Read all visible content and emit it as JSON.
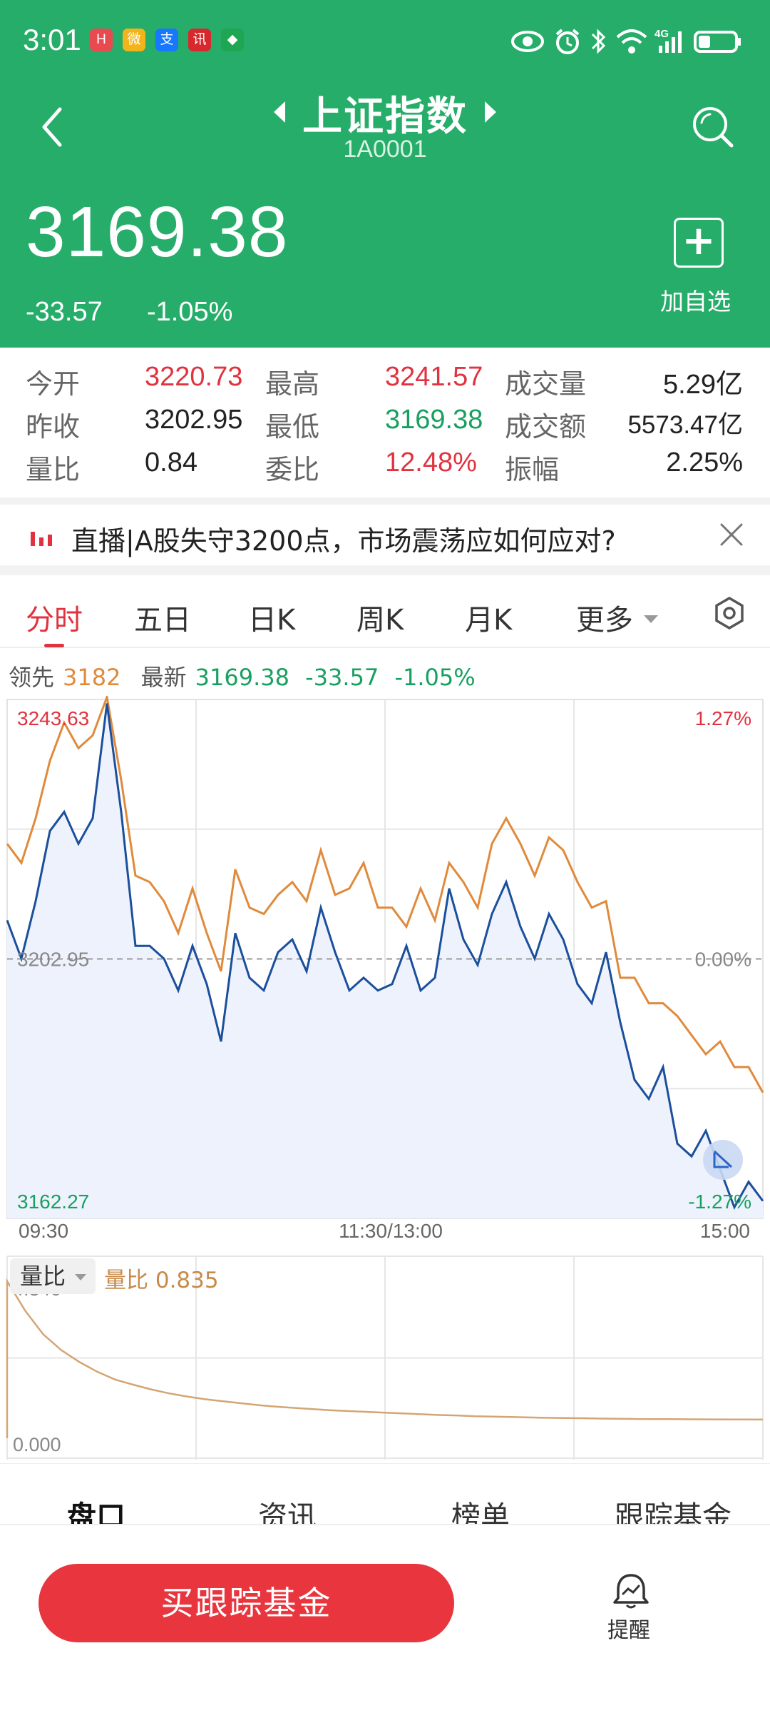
{
  "status_bar": {
    "time": "3:01",
    "notifications": [
      {
        "name": "huawei-app-icon",
        "color": "#e84a4f",
        "glyph": "H"
      },
      {
        "name": "weibo-app-icon",
        "color": "#f2b31b",
        "glyph": "微"
      },
      {
        "name": "alipay-app-icon",
        "color": "#1677ff",
        "glyph": "支"
      },
      {
        "name": "news-app-icon",
        "color": "#d7282d",
        "glyph": "讯"
      },
      {
        "name": "messaging-app-icon",
        "color": "#1fa652",
        "glyph": "◆"
      }
    ],
    "network": "4G"
  },
  "header": {
    "title": "上证指数",
    "code": "1A0001",
    "price": "3169.38",
    "change": "-33.57",
    "change_pct": "-1.05%",
    "add_label": "加自选",
    "bg_color": "#26ad6a"
  },
  "quote": {
    "open_label": "今开",
    "open": "3220.73",
    "high_label": "最高",
    "high": "3241.57",
    "volume_label": "成交量",
    "volume": "5.29亿",
    "prev_close_label": "昨收",
    "prev_close": "3202.95",
    "low_label": "最低",
    "low": "3169.38",
    "amount_label": "成交额",
    "amount": "5573.47亿",
    "vol_ratio_label": "量比",
    "vol_ratio": "0.84",
    "order_ratio_label": "委比",
    "order_ratio": "12.48%",
    "amplitude_label": "振幅",
    "amplitude": "2.25%"
  },
  "news": {
    "text": "直播|A股失守3200点，市场震荡应如何应对?"
  },
  "tabs": {
    "items": [
      "分时",
      "五日",
      "日K",
      "周K",
      "月K",
      "更多"
    ],
    "active": "分时"
  },
  "legend": {
    "lead_label": "领先",
    "lead_value": "3182",
    "latest_label": "最新",
    "latest_value": "3169.38",
    "latest_change": "-33.57",
    "latest_pct": "-1.05%"
  },
  "chart_data": [
    {
      "type": "line",
      "ylim": [
        3162.27,
        3243.63
      ],
      "base_value": 3202.95,
      "y_labels": {
        "top": "3243.63",
        "mid": "3202.95",
        "bottom": "3162.27"
      },
      "pct_labels": {
        "top": "1.27%",
        "mid": "0.00%",
        "bottom": "-1.27%"
      },
      "x_tick_labels": [
        "09:30",
        "11:30/13:00",
        "15:00"
      ],
      "series": [
        {
          "name": "领先",
          "color": "#e08a3c",
          "values": [
            3221,
            3218,
            3225,
            3234,
            3240,
            3236,
            3238,
            3244,
            3231,
            3216,
            3215,
            3212,
            3207,
            3214,
            3207,
            3201,
            3217,
            3211,
            3210,
            3213,
            3215,
            3212,
            3220,
            3213,
            3214,
            3218,
            3211,
            3211,
            3208,
            3214,
            3209,
            3218,
            3215,
            3211,
            3221,
            3225,
            3221,
            3216,
            3222,
            3220,
            3215,
            3211,
            3212,
            3200,
            3200,
            3196,
            3196,
            3194,
            3191,
            3188,
            3190,
            3186,
            3186,
            3182
          ]
        },
        {
          "name": "最新",
          "color": "#1b4f9c",
          "values": [
            3209,
            3203,
            3212,
            3223,
            3226,
            3221,
            3225,
            3243,
            3226,
            3205,
            3205,
            3203,
            3198,
            3205,
            3199,
            3190,
            3207,
            3200,
            3198,
            3204,
            3206,
            3201,
            3211,
            3204,
            3198,
            3200,
            3198,
            3199,
            3205,
            3198,
            3200,
            3214,
            3206,
            3202,
            3210,
            3215,
            3208,
            3203,
            3210,
            3206,
            3199,
            3196,
            3204,
            3193,
            3184,
            3181,
            3186,
            3174,
            3172,
            3176,
            3170,
            3164,
            3168,
            3165
          ]
        }
      ]
    },
    {
      "type": "line",
      "title": "量比",
      "current_label": "量比",
      "current_value": "0.835",
      "ylim": [
        0.0,
        4.346
      ],
      "y_labels": {
        "top": "4.346",
        "bottom": "0.000"
      },
      "series": [
        {
          "name": "量比",
          "color": "#d4a574",
          "values": [
            4.346,
            3.6,
            3.0,
            2.6,
            2.3,
            2.05,
            1.85,
            1.72,
            1.6,
            1.5,
            1.42,
            1.35,
            1.3,
            1.25,
            1.2,
            1.16,
            1.13,
            1.1,
            1.07,
            1.05,
            1.03,
            1.01,
            0.99,
            0.97,
            0.95,
            0.94,
            0.92,
            0.91,
            0.9,
            0.89,
            0.88,
            0.875,
            0.87,
            0.86,
            0.855,
            0.85,
            0.848,
            0.845,
            0.842,
            0.84,
            0.838,
            0.836,
            0.835
          ]
        }
      ]
    }
  ],
  "bottom_tabs": {
    "items": [
      "盘口",
      "资讯",
      "榜单",
      "跟踪基金"
    ],
    "active": "盘口"
  },
  "actions": {
    "buy_label": "买跟踪基金",
    "remind_label": "提醒"
  },
  "colors": {
    "up": "#e0333f",
    "down": "#18a060",
    "accent": "#e0333f"
  }
}
